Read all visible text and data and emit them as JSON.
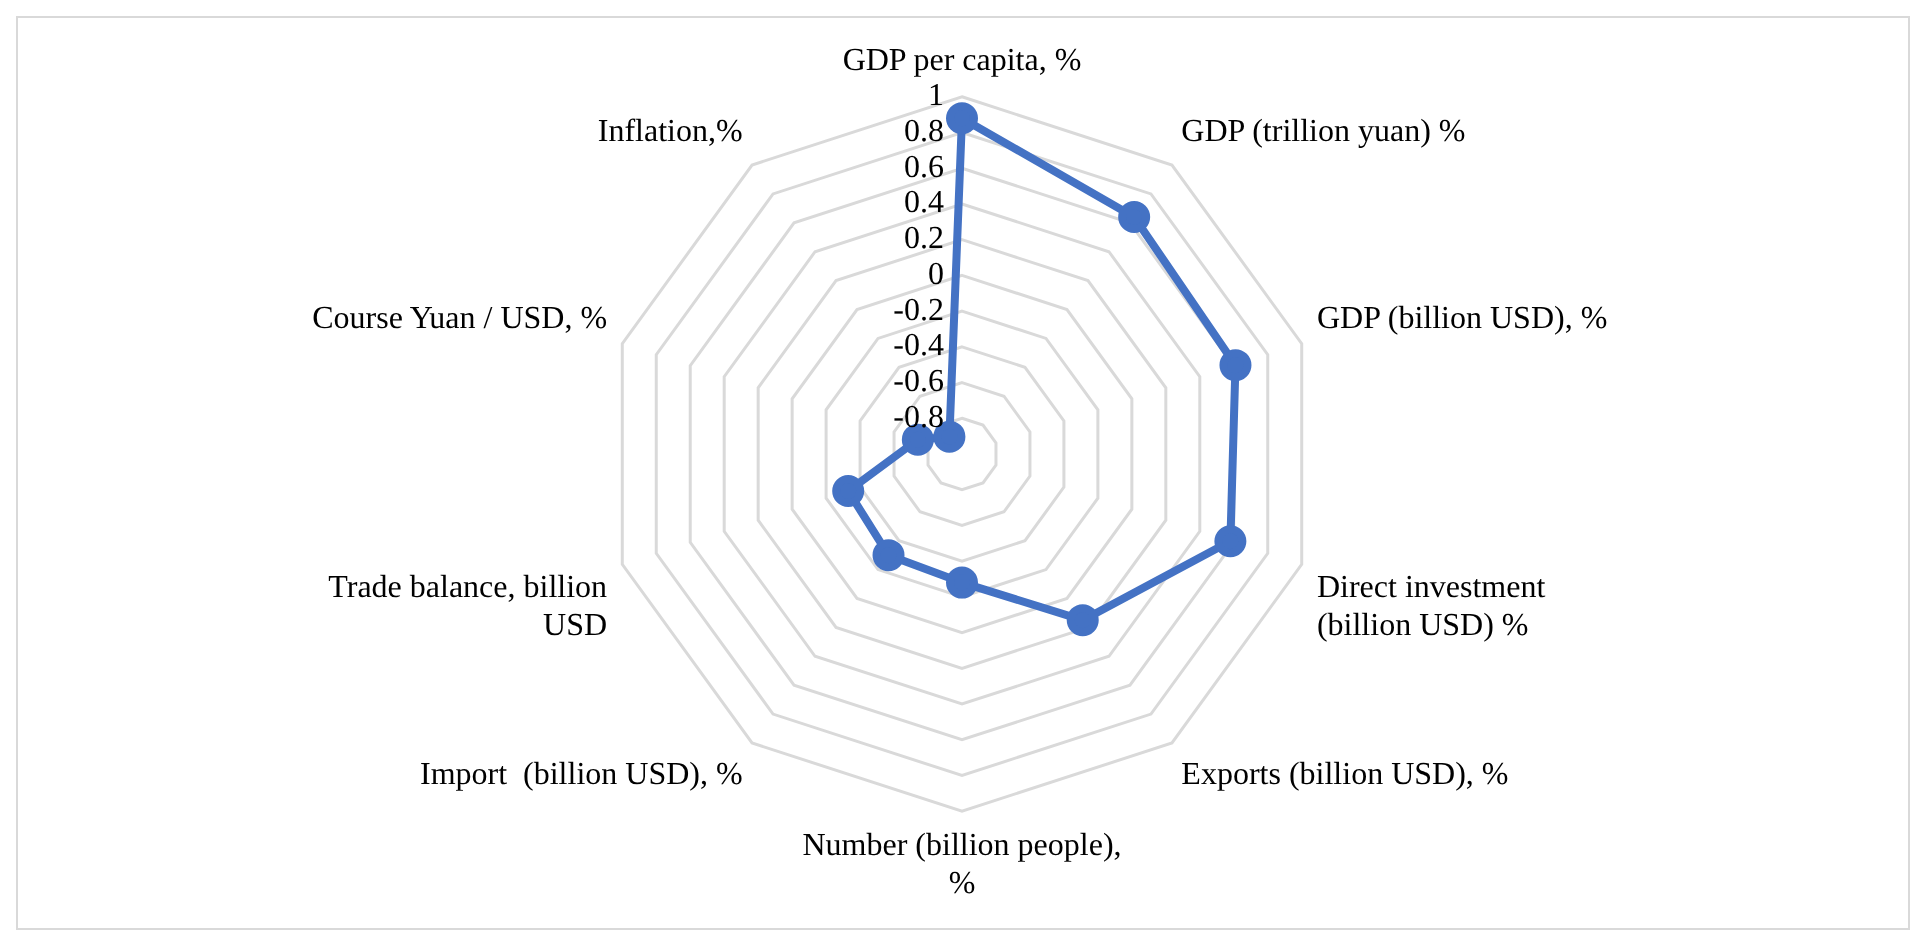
{
  "chart_data": {
    "type": "radar",
    "categories": [
      "GDP per capita, %",
      "GDP (trillion yuan) %",
      "GDP (billion USD), %",
      "Direct investment (billion USD) %",
      "Exports (billion USD), %",
      "Number (billion people), %",
      "Import  (billion USD), %",
      "Trade balance, billion USD",
      "Course Yuan / USD, %",
      "Inflation,%"
    ],
    "series": [
      {
        "color": "#4472c4",
        "values": [
          0.88,
          0.64,
          0.61,
          0.58,
          0.15,
          -0.28,
          -0.3,
          -0.33,
          -0.74,
          -0.88
        ]
      }
    ],
    "ylim": [
      -1,
      1
    ],
    "yticks": [
      -0.8,
      -0.6,
      -0.4,
      -0.2,
      0,
      0.2,
      0.4,
      0.6,
      0.8,
      1
    ],
    "grid": true,
    "marker": "circle",
    "legend": false
  }
}
